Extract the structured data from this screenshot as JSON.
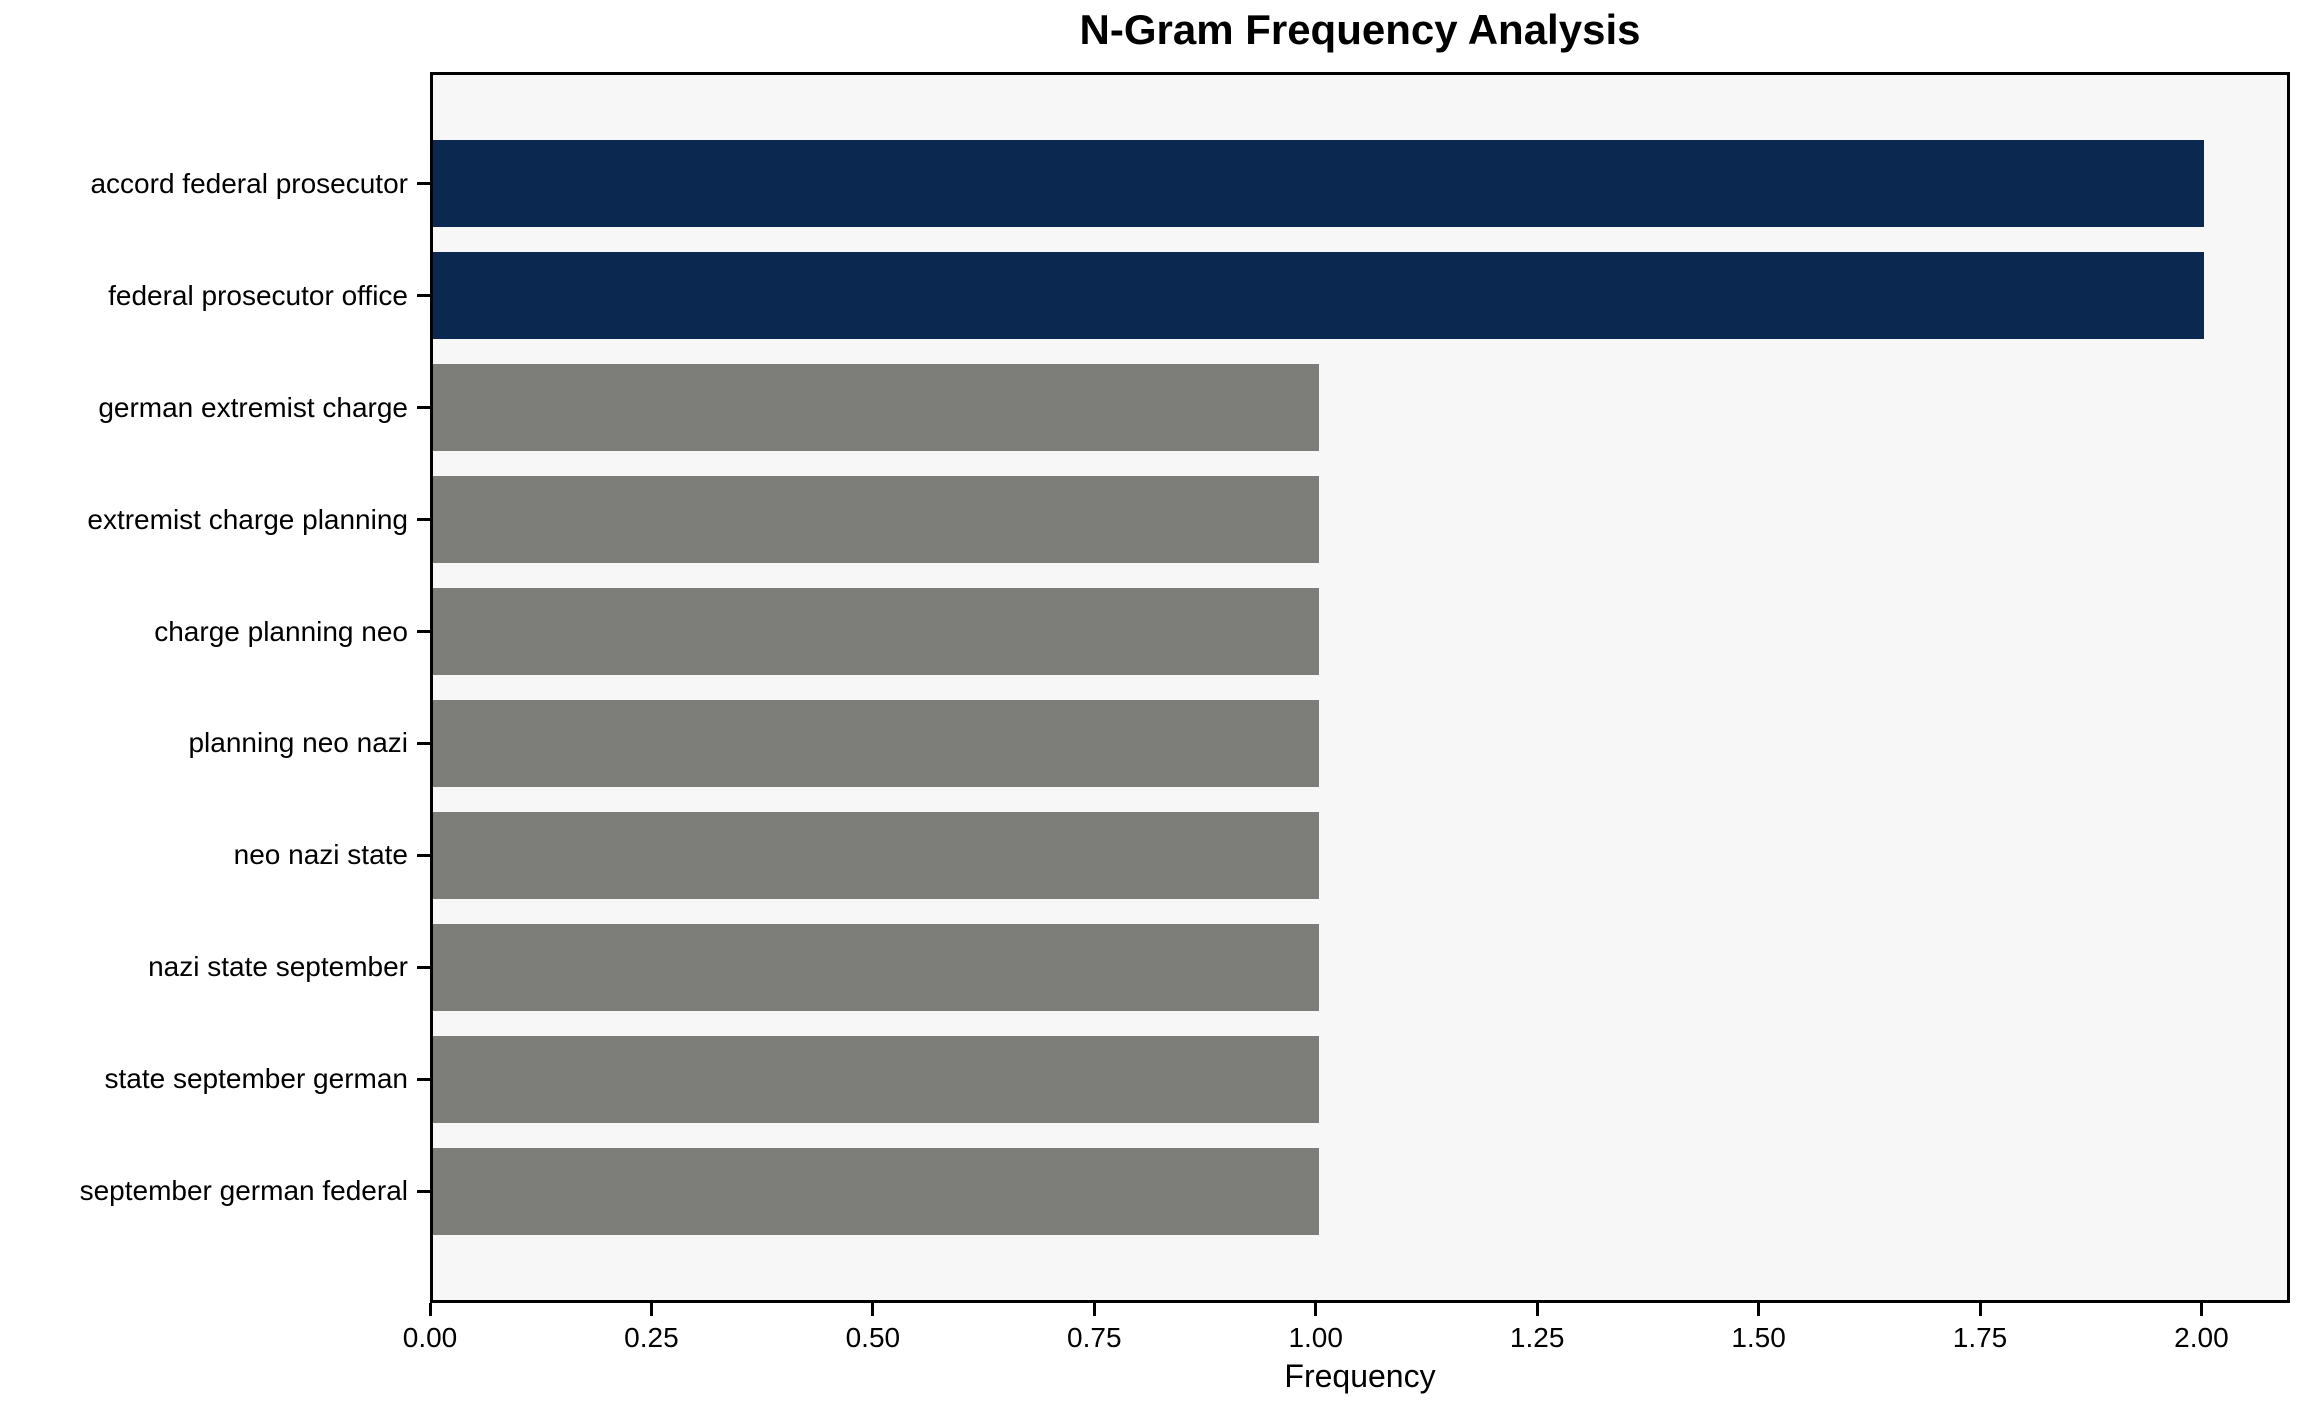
{
  "chart_data": {
    "type": "bar",
    "orientation": "horizontal",
    "title": "N-Gram Frequency Analysis",
    "xlabel": "Frequency",
    "ylabel": "",
    "categories": [
      "accord federal prosecutor",
      "federal prosecutor office",
      "german extremist charge",
      "extremist charge planning",
      "charge planning neo",
      "planning neo nazi",
      "neo nazi state",
      "nazi state september",
      "state september german",
      "september german federal"
    ],
    "values": [
      2,
      2,
      1,
      1,
      1,
      1,
      1,
      1,
      1,
      1
    ],
    "bar_colors": [
      "#0a2850",
      "#0a2850",
      "#7d7d7a",
      "#7d7d7a",
      "#7d7d7a",
      "#7d7d7a",
      "#7d7d7a",
      "#7d7d7a",
      "#7d7d7a",
      "#7d7d7a"
    ],
    "x_tick_values": [
      0.0,
      0.25,
      0.5,
      0.75,
      1.0,
      1.25,
      1.5,
      1.75,
      2.0
    ],
    "x_tick_labels": [
      "0.00",
      "0.25",
      "0.50",
      "0.75",
      "1.00",
      "1.25",
      "1.50",
      "1.75",
      "2.00"
    ],
    "xlim": [
      0,
      2.1
    ],
    "grid": false,
    "legend_position": "none",
    "colors": {
      "highlight": "#0a2850",
      "default_bar": "#7d7d7a",
      "plot_background": "#f7f7f7",
      "figure_background": "#ffffff",
      "spine": "#000000",
      "text": "#000000"
    }
  }
}
